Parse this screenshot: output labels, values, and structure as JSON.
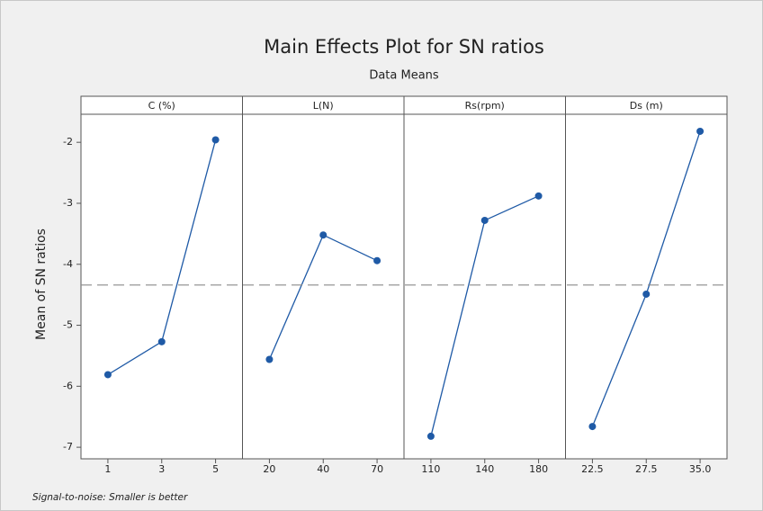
{
  "chart_data": {
    "type": "line",
    "title": "Main Effects Plot for SN ratios",
    "subtitle": "Data Means",
    "ylabel": "Mean of SN ratios",
    "footnote": "Signal-to-noise: Smaller is better",
    "ylim": [
      -7.19,
      -1.54
    ],
    "yticks": [
      -2,
      -3,
      -4,
      -5,
      -6,
      -7
    ],
    "reference_line": -4.34,
    "color": "#1f5aa6",
    "panels": [
      {
        "title": "C (%)",
        "categories": [
          "1",
          "3",
          "5"
        ],
        "values": [
          -5.81,
          -5.27,
          -1.96
        ]
      },
      {
        "title": "L(N)",
        "categories": [
          "20",
          "40",
          "70"
        ],
        "values": [
          -5.56,
          -3.52,
          -3.94
        ]
      },
      {
        "title": "Rs(rpm)",
        "categories": [
          "110",
          "140",
          "180"
        ],
        "values": [
          -6.82,
          -3.28,
          -2.88
        ]
      },
      {
        "title": "Ds (m)",
        "categories": [
          "22.5",
          "27.5",
          "35.0"
        ],
        "values": [
          -6.66,
          -4.49,
          -1.82
        ]
      }
    ]
  }
}
